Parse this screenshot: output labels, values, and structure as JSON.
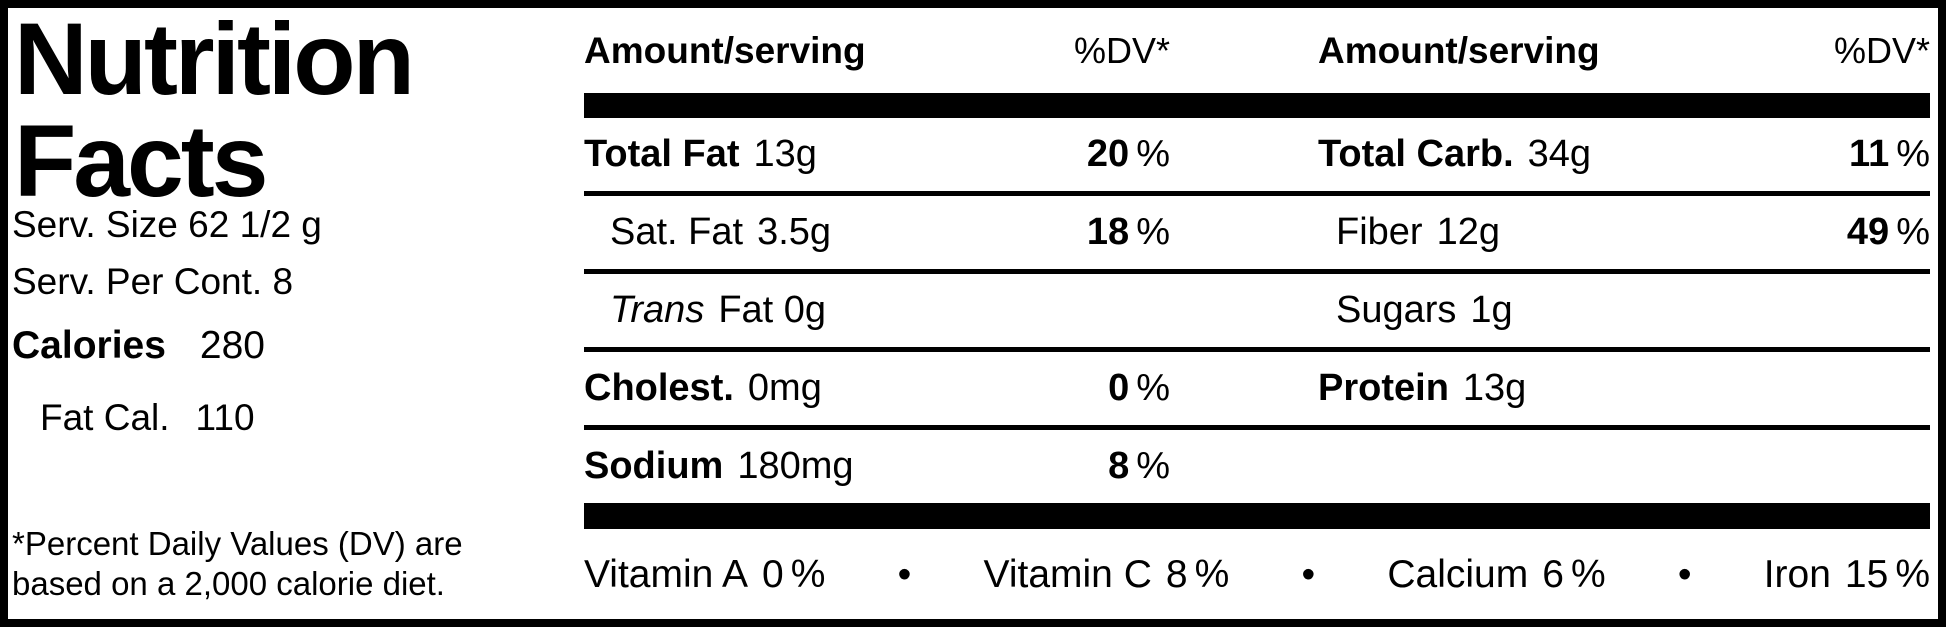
{
  "label": {
    "title_line1": "Nutrition",
    "title_line2": "Facts",
    "serving_size": "Serv. Size 62 1/2 g",
    "servings_per_container": "Serv. Per Cont. 8",
    "calories_label": "Calories",
    "calories_value": "280",
    "fat_calories_label": "Fat Cal.",
    "fat_calories_value": "110",
    "footnote_line1": "*Percent Daily Values (DV) are",
    "footnote_line2": "based on a 2,000 calorie diet.",
    "percent_sign": "%",
    "colors": {
      "text": "#000000",
      "background": "#ffffff"
    }
  },
  "table": {
    "header": {
      "amount": "Amount/serving",
      "dv": "%DV*"
    },
    "rows": [
      {
        "left_label": "Total Fat",
        "left_amount": "13g",
        "left_dv": "20",
        "right_label": "Total Carb.",
        "right_amount": "34g",
        "right_dv": "11"
      },
      {
        "left_label": "Sat. Fat",
        "left_amount": "3.5g",
        "left_dv": "18",
        "right_label": "Fiber",
        "right_amount": "12g",
        "right_dv": "49"
      },
      {
        "left_label": "Trans",
        "left_amount": "Fat 0g",
        "right_label": "Sugars",
        "right_amount": "1g"
      },
      {
        "left_label": "Cholest.",
        "left_amount": "0mg",
        "left_dv": "0",
        "right_label": "Protein",
        "right_amount": "13g"
      },
      {
        "left_label": "Sodium",
        "left_amount": "180mg",
        "left_dv": "8"
      }
    ],
    "bullet": "•",
    "vitamins": [
      {
        "name": "Vitamin A",
        "value": "0"
      },
      {
        "name": "Vitamin C",
        "value": "8"
      },
      {
        "name": "Calcium",
        "value": "6"
      },
      {
        "name": "Iron",
        "value": "15"
      }
    ]
  }
}
